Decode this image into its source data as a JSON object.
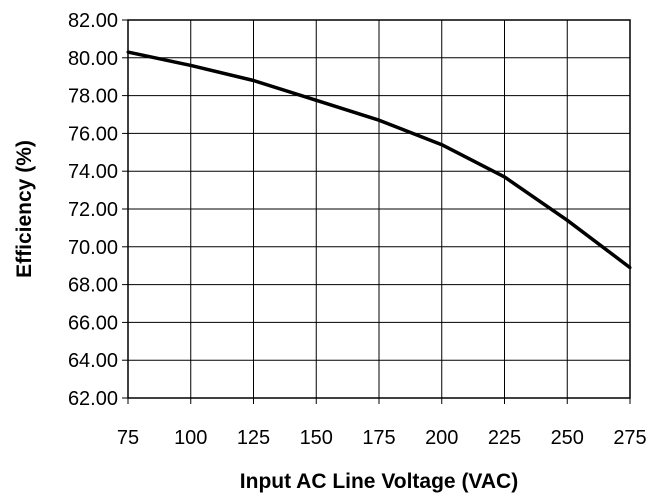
{
  "chart_data": {
    "type": "line",
    "title": "",
    "xlabel": "Input AC Line Voltage (VAC)",
    "ylabel": "Efficiency (%)",
    "xlim": [
      75,
      275
    ],
    "ylim": [
      62,
      82
    ],
    "x_ticks": [
      "75",
      "100",
      "125",
      "150",
      "175",
      "200",
      "225",
      "250",
      "275"
    ],
    "y_ticks": [
      "82.00",
      "80.00",
      "78.00",
      "76.00",
      "74.00",
      "72.00",
      "70.00",
      "68.00",
      "66.00",
      "64.00",
      "62.00"
    ],
    "grid": true,
    "legend": "none",
    "series": [
      {
        "x": [
          75,
          100,
          125,
          150,
          175,
          200,
          225,
          250,
          275
        ],
        "y": [
          80.3,
          79.6,
          78.8,
          77.75,
          76.7,
          75.4,
          73.7,
          71.4,
          68.9
        ],
        "color": "#000000"
      }
    ]
  }
}
